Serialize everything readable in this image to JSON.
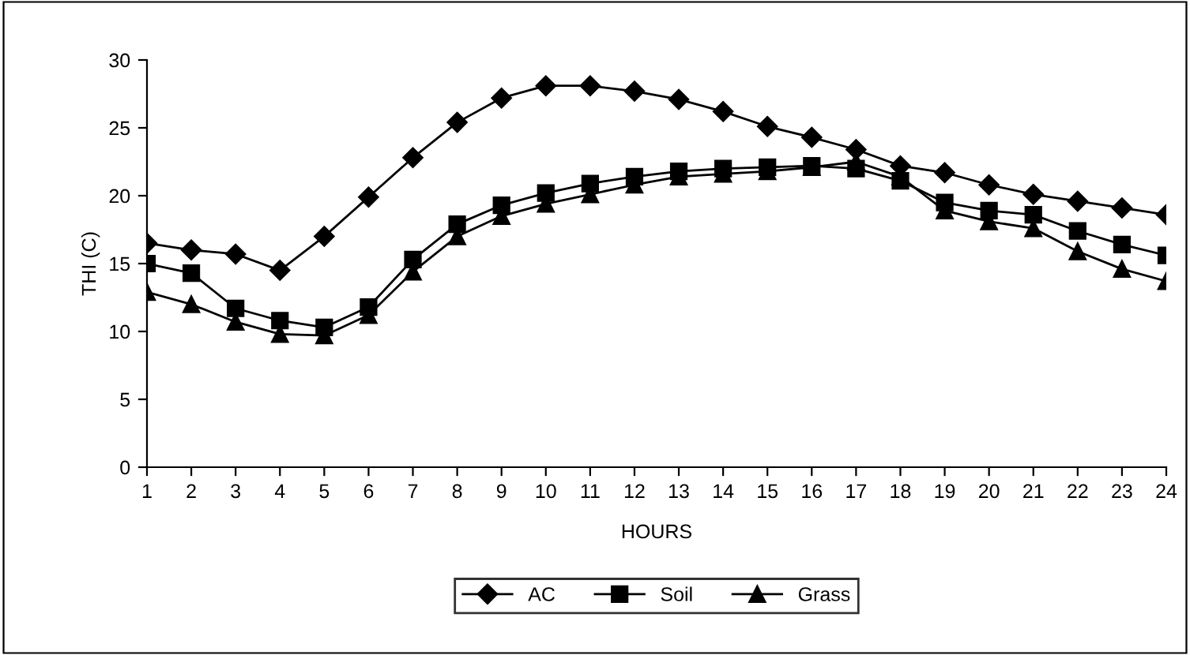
{
  "chart_data": {
    "type": "line",
    "xlabel": "HOURS",
    "ylabel": "THI (C)",
    "categories": [
      "1",
      "2",
      "3",
      "4",
      "5",
      "6",
      "7",
      "8",
      "9",
      "10",
      "11",
      "12",
      "13",
      "14",
      "15",
      "16",
      "17",
      "18",
      "19",
      "20",
      "21",
      "22",
      "23",
      "24"
    ],
    "series": [
      {
        "name": "AC",
        "color": "#000000",
        "marker": "diamond",
        "values": [
          16.5,
          16,
          15.7,
          14.5,
          17,
          19.9,
          22.8,
          25.4,
          27.2,
          28.1,
          28.1,
          27.7,
          27.1,
          26.2,
          25.1,
          24.3,
          23.4,
          22.2,
          21.7,
          20.8,
          20.1,
          19.6,
          19.1,
          18.6
        ]
      },
      {
        "name": "Soil",
        "color": "#000000",
        "marker": "square",
        "values": [
          15,
          14.3,
          11.7,
          10.8,
          10.3,
          11.8,
          15.3,
          17.9,
          19.3,
          20.2,
          20.9,
          21.4,
          21.8,
          22.0,
          22.1,
          22.2,
          22.0,
          21.1,
          19.5,
          18.9,
          18.6,
          17.4,
          16.4,
          15.6
        ]
      },
      {
        "name": "Grass",
        "color": "#000000",
        "marker": "triangle",
        "values": [
          12.9,
          12,
          10.7,
          9.8,
          9.7,
          11.2,
          14.4,
          17,
          18.5,
          19.4,
          20.1,
          20.8,
          21.4,
          21.6,
          21.8,
          22.1,
          22.5,
          21.4,
          18.9,
          18.1,
          17.6,
          15.9,
          14.6,
          13.7
        ]
      }
    ],
    "ylim": [
      0,
      30
    ],
    "yticks": [
      0,
      5,
      10,
      15,
      20,
      25,
      30
    ],
    "grid": false,
    "legend": "bottom",
    "line_style": "solid"
  }
}
